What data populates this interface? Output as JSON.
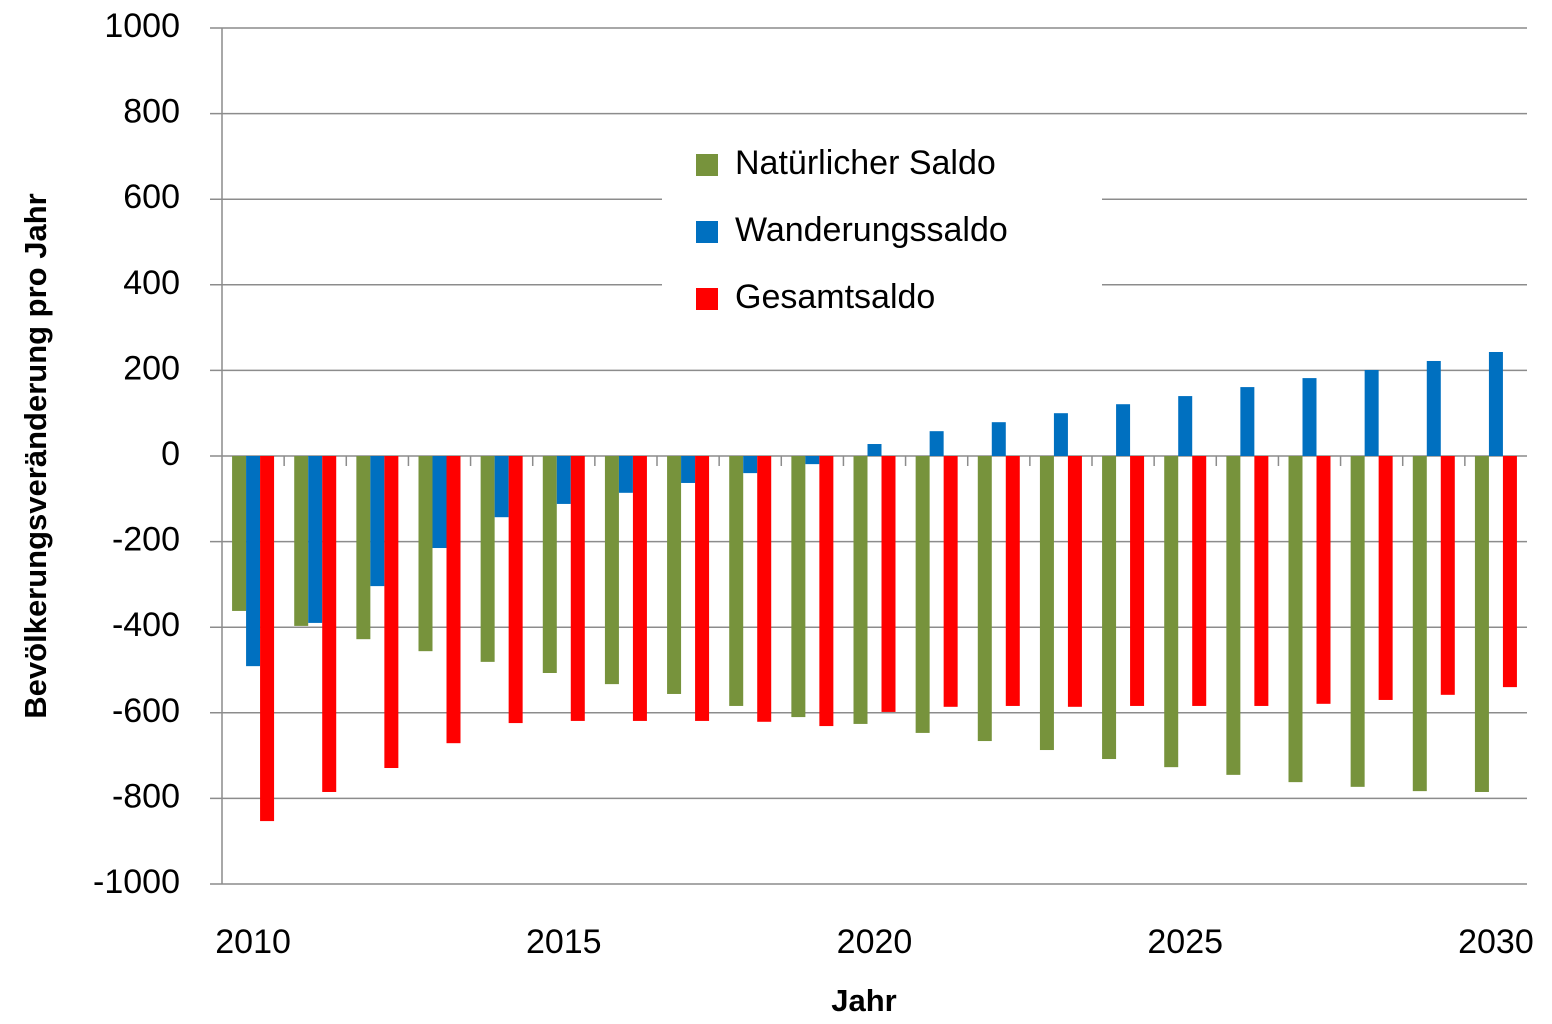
{
  "chart_data": {
    "type": "bar",
    "categories": [
      "2010",
      null,
      null,
      null,
      null,
      "2015",
      null,
      null,
      null,
      null,
      "2020",
      null,
      null,
      null,
      null,
      "2025",
      null,
      null,
      null,
      null,
      "2030"
    ],
    "series": [
      {
        "name": "Natürlicher Saldo",
        "color": "#77933c",
        "values": [
          -362,
          -397,
          -428,
          -456,
          -481,
          -507,
          -533,
          -556,
          -584,
          -610,
          -626,
          -647,
          -666,
          -687,
          -708,
          -727,
          -745,
          -762,
          -773,
          -783,
          -785
        ]
      },
      {
        "name": "Wanderungssaldo",
        "color": "#0070c0",
        "values": [
          -491,
          -390,
          -304,
          -215,
          -143,
          -112,
          -86,
          -63,
          -40,
          -19,
          28,
          58,
          79,
          100,
          121,
          140,
          161,
          182,
          201,
          222,
          243
        ]
      },
      {
        "name": "Gesamtsaldo",
        "color": "#ff0000",
        "values": [
          -853,
          -785,
          -729,
          -671,
          -624,
          -619,
          -619,
          -619,
          -621,
          -631,
          -598,
          -586,
          -584,
          -586,
          -584,
          -584,
          -584,
          -579,
          -570,
          -558,
          -540
        ]
      }
    ],
    "ylim": [
      -1000,
      1000
    ],
    "yticks": [
      -1000,
      -800,
      -600,
      -400,
      -200,
      0,
      200,
      400,
      600,
      800,
      1000
    ],
    "grid": true,
    "legend": "top",
    "x_label": "Jahr",
    "y_label": "Bevölkerungsveränderung pro Jahr"
  }
}
